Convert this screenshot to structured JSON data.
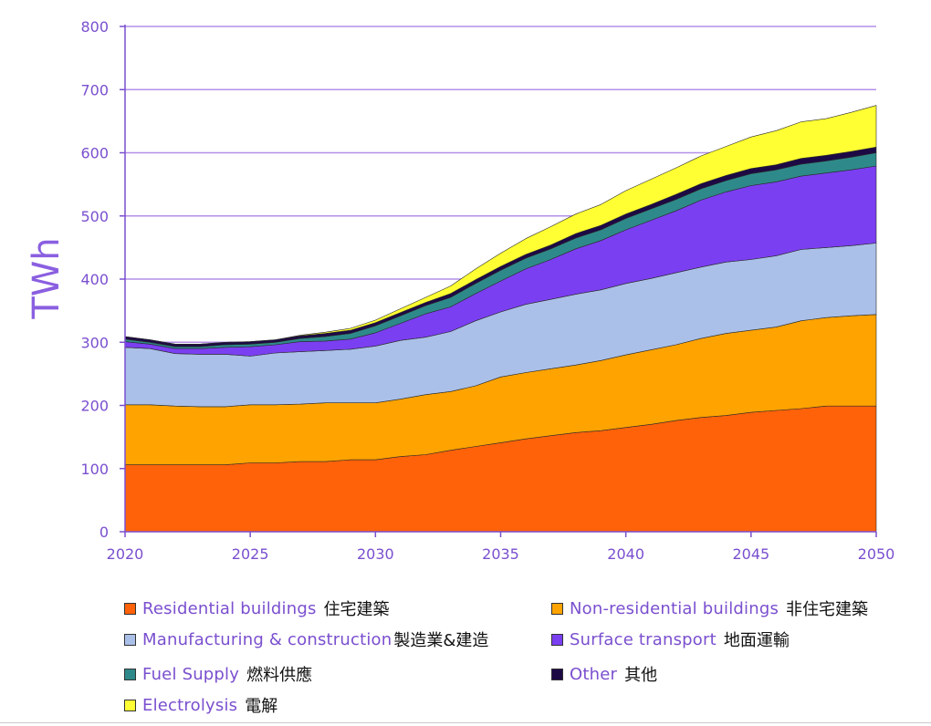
{
  "chart_data": {
    "type": "area",
    "stacked": true,
    "x": [
      2020,
      2021,
      2022,
      2023,
      2024,
      2025,
      2026,
      2027,
      2028,
      2029,
      2030,
      2031,
      2032,
      2033,
      2034,
      2035,
      2036,
      2037,
      2038,
      2039,
      2040,
      2041,
      2042,
      2043,
      2044,
      2045,
      2046,
      2047,
      2048,
      2049,
      2050
    ],
    "xticks": [
      "2020",
      "2025",
      "2030",
      "2035",
      "2040",
      "2045",
      "2050"
    ],
    "ylabel": "TWh",
    "ylim": [
      0,
      800
    ],
    "yticks": [
      "0",
      "100",
      "200",
      "300",
      "400",
      "500",
      "600",
      "700",
      "800"
    ],
    "grid": "horizontal",
    "legend_position": "bottom",
    "series": [
      {
        "name": "Residential buildings",
        "name_zh": "住宅建築",
        "color": "#ff6209",
        "values": [
          106,
          106,
          106,
          106,
          106,
          109,
          109,
          111,
          111,
          114,
          114,
          119,
          122,
          129,
          135,
          141,
          147,
          152,
          157,
          160,
          165,
          170,
          176,
          181,
          184,
          189,
          192,
          195,
          199,
          199,
          199
        ]
      },
      {
        "name": "Non-residential buildings",
        "name_zh": "非住宅建築",
        "color": "#ffa300",
        "values": [
          95,
          95,
          93,
          92,
          92,
          92,
          92,
          91,
          93,
          90,
          90,
          91,
          95,
          93,
          96,
          104,
          105,
          106,
          107,
          111,
          115,
          118,
          120,
          125,
          130,
          130,
          132,
          139,
          140,
          143,
          145
        ]
      },
      {
        "name": "Manufacturing & construction",
        "name_zh": "製造業&建造",
        "color": "#aac0e8",
        "values": [
          91,
          89,
          83,
          83,
          83,
          77,
          82,
          83,
          83,
          85,
          90,
          93,
          91,
          95,
          103,
          103,
          108,
          110,
          112,
          112,
          113,
          113,
          114,
          113,
          113,
          112,
          113,
          113,
          111,
          111,
          113
        ]
      },
      {
        "name": "Surface transport",
        "name_zh": "地面運輸",
        "color": "#7b3ff2",
        "values": [
          9,
          7,
          8,
          9,
          11,
          15,
          13,
          16,
          15,
          16,
          21,
          27,
          37,
          39,
          43,
          49,
          56,
          63,
          72,
          78,
          85,
          92,
          98,
          106,
          111,
          117,
          117,
          116,
          118,
          120,
          122
        ]
      },
      {
        "name": "Fuel Supply",
        "name_zh": "燃料供應",
        "color": "#2e8a8a",
        "values": [
          4,
          3,
          3,
          3,
          4,
          4,
          4,
          5,
          7,
          9,
          11,
          12,
          13,
          15,
          16,
          17,
          17,
          17,
          17,
          17,
          18,
          18,
          18,
          18,
          18,
          19,
          19,
          19,
          19,
          20,
          21
        ]
      },
      {
        "name": "Other",
        "name_zh": "其他",
        "color": "#1d0a45",
        "values": [
          4,
          4,
          4,
          4,
          4,
          4,
          4,
          4,
          5,
          5,
          5,
          5,
          5,
          6,
          6,
          6,
          6,
          6,
          7,
          7,
          7,
          7,
          8,
          8,
          8,
          8,
          8,
          9,
          9,
          9,
          9
        ]
      },
      {
        "name": "Electrolysis",
        "name_zh": "電解",
        "color": "#ffff33",
        "values": [
          0,
          0,
          0,
          0,
          0,
          0,
          0,
          1,
          2,
          3,
          4,
          6,
          8,
          12,
          17,
          21,
          25,
          29,
          31,
          33,
          37,
          40,
          42,
          44,
          46,
          50,
          54,
          58,
          58,
          62,
          66
        ]
      }
    ]
  }
}
